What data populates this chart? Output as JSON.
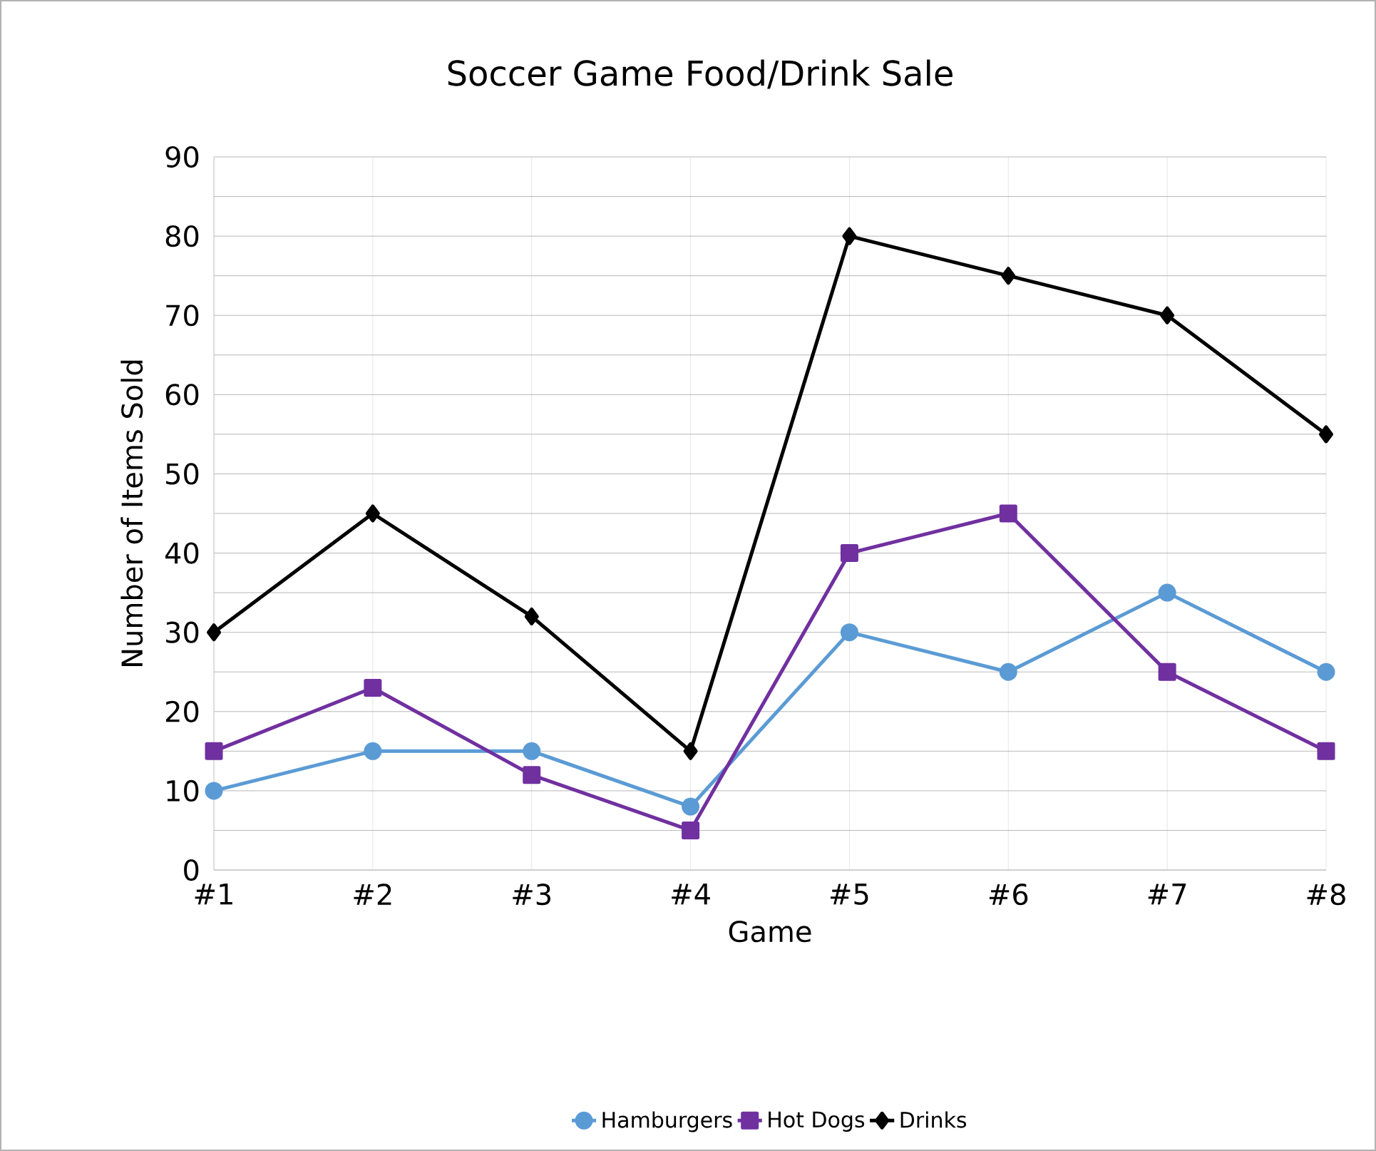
{
  "chart_data": {
    "type": "line",
    "title": "Soccer Game Food/Drink Sale",
    "xlabel": "Game",
    "ylabel": "Number of Items Sold",
    "categories": [
      "#1",
      "#2",
      "#3",
      "#4",
      "#5",
      "#6",
      "#7",
      "#8"
    ],
    "series": [
      {
        "name": "Hamburgers",
        "color": "#5b9bd5",
        "marker": "circle",
        "values": [
          10,
          15,
          15,
          8,
          30,
          25,
          35,
          25
        ]
      },
      {
        "name": "Hot Dogs",
        "color": "#7030a0",
        "marker": "square",
        "values": [
          15,
          23,
          12,
          5,
          40,
          45,
          25,
          15
        ]
      },
      {
        "name": "Drinks",
        "color": "#000000",
        "marker": "diamond",
        "values": [
          30,
          45,
          32,
          15,
          80,
          75,
          70,
          55
        ]
      }
    ],
    "ylim": [
      0,
      90
    ],
    "yticks": [
      0,
      10,
      20,
      30,
      40,
      50,
      60,
      70,
      80,
      90
    ],
    "grid": true,
    "legend": "bottom",
    "line_style": "solid"
  }
}
